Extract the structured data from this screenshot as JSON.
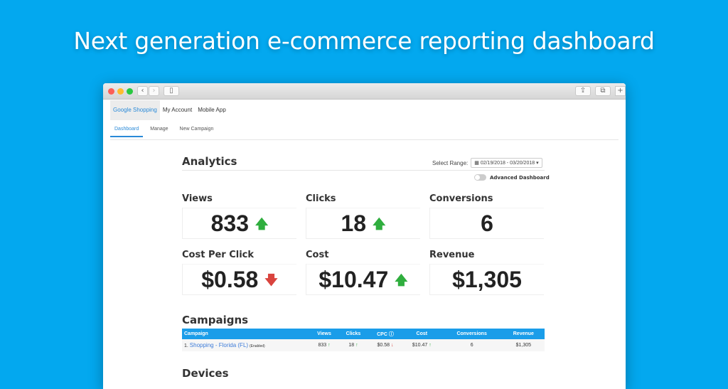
{
  "hero_title": "Next generation e-commerce reporting dashboard",
  "colors": {
    "background": "#03a8ef",
    "accent": "#2a8ad8",
    "up": "#2fae3e",
    "down": "#d9443e",
    "table_header": "#1a9de9"
  },
  "nav": {
    "items": [
      "Google Shopping",
      "My Account",
      "Mobile App"
    ],
    "active": "Google Shopping"
  },
  "subnav": {
    "items": [
      "Dashboard",
      "Manage",
      "New Campaign"
    ],
    "active": "Dashboard"
  },
  "analytics": {
    "title": "Analytics",
    "range_label": "Select Range:",
    "range_value": "02/19/2018 - 03/20/2018",
    "advanced_label": "Advanced Dashboard",
    "advanced_on": false
  },
  "metrics": [
    {
      "label": "Views",
      "value": "833",
      "trend": "up"
    },
    {
      "label": "Clicks",
      "value": "18",
      "trend": "up"
    },
    {
      "label": "Conversions",
      "value": "6",
      "trend": "none"
    },
    {
      "label": "Cost Per Click",
      "value": "$0.58",
      "trend": "down"
    },
    {
      "label": "Cost",
      "value": "$10.47",
      "trend": "up"
    },
    {
      "label": "Revenue",
      "value": "$1,305",
      "trend": "none"
    }
  ],
  "campaigns": {
    "title": "Campaigns",
    "headers": [
      "Campaign",
      "Views",
      "Clicks",
      "CPC",
      "Cost",
      "Conversions",
      "Revenue"
    ],
    "rows": [
      {
        "index": "1.",
        "name": "Shopping - Florida (FL)",
        "status": "(Enabled)",
        "views": "833",
        "clicks": "18",
        "cpc": "$0.58",
        "cost": "$10.47",
        "conversions": "6",
        "revenue": "$1,305"
      }
    ]
  },
  "devices": {
    "title": "Devices"
  }
}
